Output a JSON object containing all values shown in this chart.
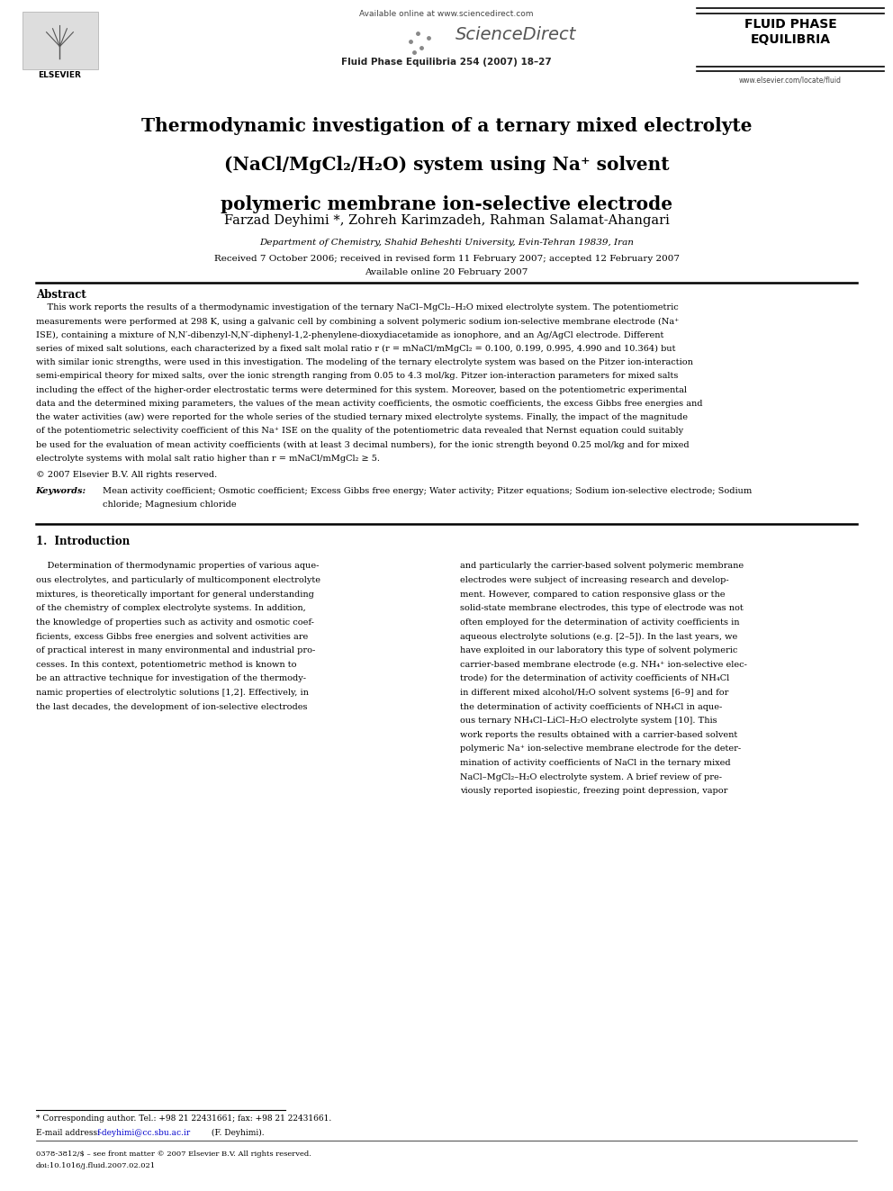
{
  "page_width": 9.92,
  "page_height": 13.23,
  "bg_color": "#ffffff",
  "header_available_online": "Available online at www.sciencedirect.com",
  "header_journal_name": "Fluid Phase Equilibria 254 (2007) 18–27",
  "header_logo_text": "FLUID PHASE\nEQUILIBRIA",
  "header_website": "www.elsevier.com/locate/fluid",
  "header_elsevier": "ELSEVIER",
  "header_sciencedirect": "ScienceDirect",
  "title_line1": "Thermodynamic investigation of a ternary mixed electrolyte",
  "title_line2": "(NaCl/MgCl₂/H₂O) system using Na⁺ solvent",
  "title_line3": "polymeric membrane ion-selective electrode",
  "authors": "Farzad Deyhimi *, Zohreh Karimzadeh, Rahman Salamat-Ahangari",
  "affiliation": "Department of Chemistry, Shahid Beheshti University, Evin-Tehran 19839, Iran",
  "received": "Received 7 October 2006; received in revised form 11 February 2007; accepted 12 February 2007",
  "available_online": "Available online 20 February 2007",
  "abstract_title": "Abstract",
  "abstract_indent": "    This work reports the results of a thermodynamic investigation of the ternary NaCl–MgCl₂–H₂O mixed electrolyte system. The potentiometric\nmeasurements were performed at 298 K, using a galvanic cell by combining a solvent polymeric sodium ion-selective membrane electrode (Na⁺\nISE), containing a mixture of N,N′-dibenzyl-N,N′-diphenyl-1,2-phenylene-dioxydiacetamide as ionophore, and an Ag/AgCl electrode. Different\nseries of mixed salt solutions, each characterized by a fixed salt molal ratio r (r = mNaCl/mMgCl₂ = 0.100, 0.199, 0.995, 4.990 and 10.364) but\nwith similar ionic strengths, were used in this investigation. The modeling of the ternary electrolyte system was based on the Pitzer ion-interaction\nsemi-empirical theory for mixed salts, over the ionic strength ranging from 0.05 to 4.3 mol/kg. Pitzer ion-interaction parameters for mixed salts\nincluding the effect of the higher-order electrostatic terms were determined for this system. Moreover, based on the potentiometric experimental\ndata and the determined mixing parameters, the values of the mean activity coefficients, the osmotic coefficients, the excess Gibbs free energies and\nthe water activities (aw) were reported for the whole series of the studied ternary mixed electrolyte systems. Finally, the impact of the magnitude\nof the potentiometric selectivity coefficient of this Na⁺ ISE on the quality of the potentiometric data revealed that Nernst equation could suitably\nbe used for the evaluation of mean activity coefficients (with at least 3 decimal numbers), for the ionic strength beyond 0.25 mol/kg and for mixed\nelectrolyte systems with molal salt ratio higher than r = mNaCl/mMgCl₂ ≥ 5.",
  "copyright": "© 2007 Elsevier B.V. All rights reserved.",
  "keywords_label": "Keywords:",
  "keywords_text": "Mean activity coefficient; Osmotic coefficient; Excess Gibbs free energy; Water activity; Pitzer equations; Sodium ion-selective electrode; Sodium\nchloride; Magnesium chloride",
  "section1_title": "1.  Introduction",
  "intro_left_lines": [
    "    Determination of thermodynamic properties of various aque-",
    "ous electrolytes, and particularly of multicomponent electrolyte",
    "mixtures, is theoretically important for general understanding",
    "of the chemistry of complex electrolyte systems. In addition,",
    "the knowledge of properties such as activity and osmotic coef-",
    "ficients, excess Gibbs free energies and solvent activities are",
    "of practical interest in many environmental and industrial pro-",
    "cesses. In this context, potentiometric method is known to",
    "be an attractive technique for investigation of the thermody-",
    "namic properties of electrolytic solutions [1,2]. Effectively, in",
    "the last decades, the development of ion-selective electrodes"
  ],
  "intro_right_lines": [
    "and particularly the carrier-based solvent polymeric membrane",
    "electrodes were subject of increasing research and develop-",
    "ment. However, compared to cation responsive glass or the",
    "solid-state membrane electrodes, this type of electrode was not",
    "often employed for the determination of activity coefficients in",
    "aqueous electrolyte solutions (e.g. [2–5]). In the last years, we",
    "have exploited in our laboratory this type of solvent polymeric",
    "carrier-based membrane electrode (e.g. NH₄⁺ ion-selective elec-",
    "trode) for the determination of activity coefficients of NH₄Cl",
    "in different mixed alcohol/H₂O solvent systems [6–9] and for",
    "the determination of activity coefficients of NH₄Cl in aque-",
    "ous ternary NH₄Cl–LiCl–H₂O electrolyte system [10]. This",
    "work reports the results obtained with a carrier-based solvent",
    "polymeric Na⁺ ion-selective membrane electrode for the deter-",
    "mination of activity coefficients of NaCl in the ternary mixed",
    "NaCl–MgCl₂–H₂O electrolyte system. A brief review of pre-",
    "viously reported isopiestic, freezing point depression, vapor"
  ],
  "footnote_line": "* Corresponding author. Tel.: +98 21 22431661; fax: +98 21 22431661.",
  "footnote_email_label": "E-mail address:",
  "footnote_email": "f-deyhimi@cc.sbu.ac.ir",
  "footnote_email_suffix": " (F. Deyhimi).",
  "footer_issn": "0378-3812/$ – see front matter © 2007 Elsevier B.V. All rights reserved.",
  "footer_doi": "doi:10.1016/j.fluid.2007.02.021"
}
